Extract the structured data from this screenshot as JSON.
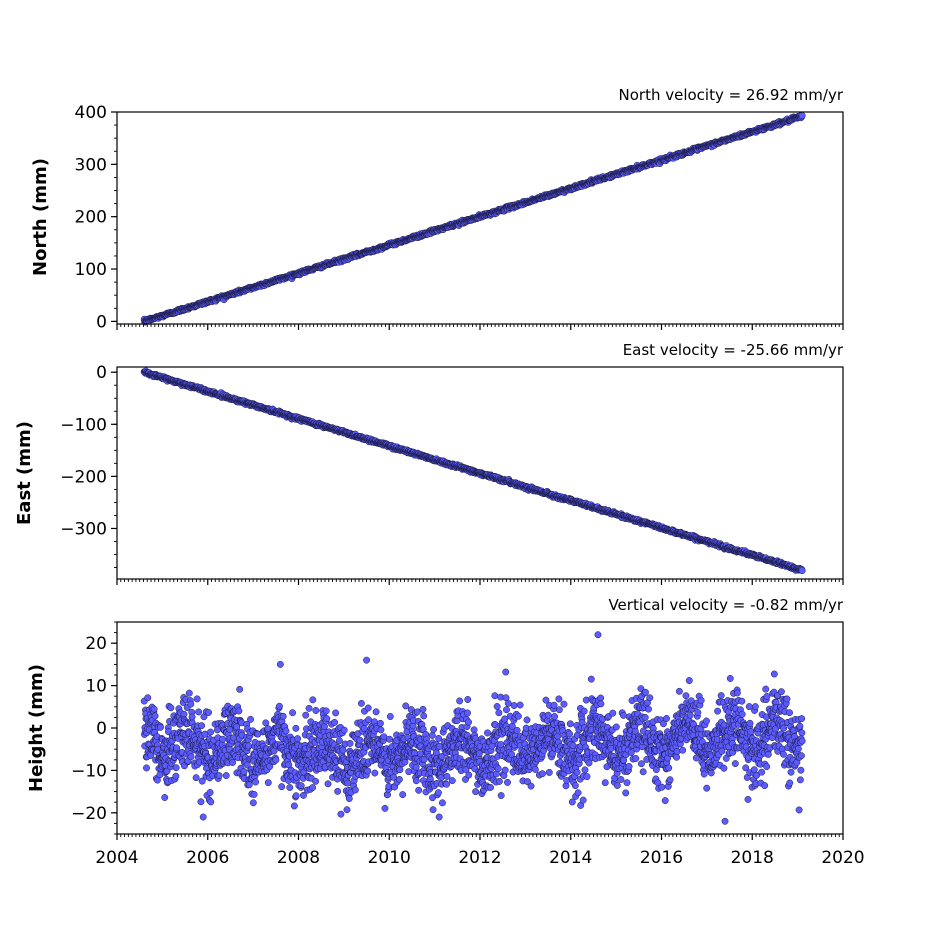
{
  "chart_data": [
    {
      "type": "scatter",
      "panel": "north",
      "title": "North velocity = 26.92 mm/yr",
      "ylabel": "North (mm)",
      "xlabel": "",
      "xlim": [
        2004,
        2020
      ],
      "ylim": [
        -5,
        400
      ],
      "yticks": [
        0,
        100,
        200,
        300,
        400
      ],
      "ytick_labels": [
        "0",
        "100",
        "200",
        "300",
        "400"
      ],
      "time_range": [
        2004.6,
        2019.1
      ],
      "velocity_mm_per_yr": 26.92,
      "start_value": 0,
      "end_value": 392,
      "scatter_amplitude": 1.5,
      "point_color": "#5b5bff",
      "edge_color": "#1a1a40",
      "show_xtick_labels": false
    },
    {
      "type": "scatter",
      "panel": "east",
      "title": "East velocity = -25.66 mm/yr",
      "ylabel": "East (mm)",
      "xlabel": "",
      "xlim": [
        2004,
        2020
      ],
      "ylim": [
        -397,
        10
      ],
      "yticks": [
        0,
        -100,
        -200,
        -300
      ],
      "ytick_labels": [
        "0",
        "−100",
        "−200",
        "−300"
      ],
      "time_range": [
        2004.6,
        2019.1
      ],
      "velocity_mm_per_yr": -25.66,
      "start_value": 0,
      "end_value": -380,
      "scatter_amplitude": 1.5,
      "point_color": "#5b5bff",
      "edge_color": "#1a1a40",
      "show_xtick_labels": false
    },
    {
      "type": "scatter",
      "panel": "height",
      "title": "Vertical velocity = -0.82 mm/yr",
      "ylabel": "Height (mm)",
      "xlabel": "",
      "xlim": [
        2004,
        2020
      ],
      "ylim": [
        -25,
        25
      ],
      "yticks": [
        20,
        10,
        0,
        -10,
        -20
      ],
      "ytick_labels": [
        "20",
        "10",
        "0",
        "−10",
        "−20"
      ],
      "time_range": [
        2004.6,
        2019.1
      ],
      "velocity_mm_per_yr": -0.82,
      "start_value": -2,
      "end_value": -5,
      "scatter_amplitude": 9,
      "point_color": "#5b5bff",
      "edge_color": "#1a1a40",
      "show_xtick_labels": true,
      "xticks": [
        2004,
        2006,
        2008,
        2010,
        2012,
        2014,
        2016,
        2018,
        2020
      ],
      "xtick_labels": [
        "2004",
        "2006",
        "2008",
        "2010",
        "2012",
        "2014",
        "2016",
        "2018",
        "2020"
      ],
      "outliers": [
        {
          "x": 2014.6,
          "y": 22
        },
        {
          "x": 2009.5,
          "y": 16
        },
        {
          "x": 2007.6,
          "y": 15
        },
        {
          "x": 2005.9,
          "y": -21
        },
        {
          "x": 2011.1,
          "y": -21
        },
        {
          "x": 2017.4,
          "y": -22
        }
      ]
    }
  ]
}
